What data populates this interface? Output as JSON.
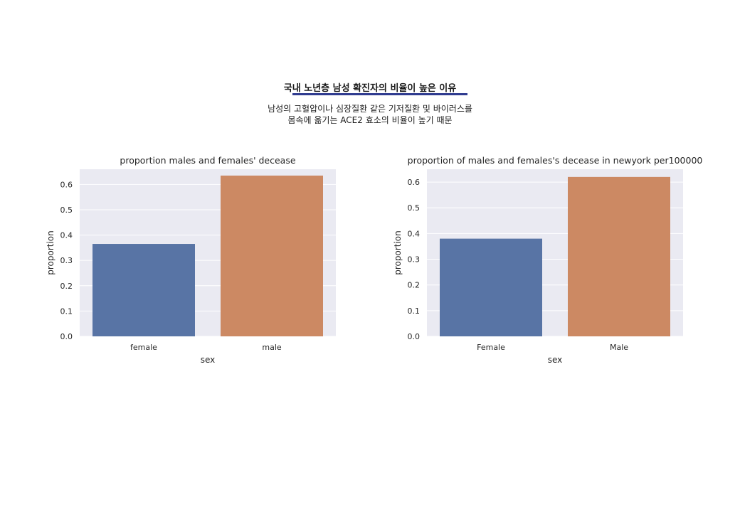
{
  "page": {
    "headline": "국내 노년층 남성 확진자의 비율이 높은 이유",
    "subtext_lines": [
      "남성의 고혈압이나 심장질환 같은 기저질환 및 바이러스를",
      "몸속에 옮기는 ACE2 효소의 비율이 높기 때문"
    ]
  },
  "colors": {
    "female": "#5874a5",
    "male": "#cc8963",
    "panel": "#eaeaf2",
    "rule": "#2f3b8f"
  },
  "chart_data": [
    {
      "type": "bar",
      "title": "proportion males and females' decease",
      "categories": [
        "female",
        "male"
      ],
      "values": [
        0.365,
        0.635
      ],
      "xlabel": "sex",
      "ylabel": "proportion",
      "ylim": [
        0,
        0.66
      ],
      "yticks": [
        "0.0",
        "0.1",
        "0.2",
        "0.3",
        "0.4",
        "0.5",
        "0.6"
      ],
      "grid": true
    },
    {
      "type": "bar",
      "title": "proportion of males and females's decease in newyork per100000",
      "categories": [
        "Female",
        "Male"
      ],
      "values": [
        0.38,
        0.62
      ],
      "xlabel": "sex",
      "ylabel": "proportion",
      "ylim": [
        0,
        0.65
      ],
      "yticks": [
        "0.0",
        "0.1",
        "0.2",
        "0.3",
        "0.4",
        "0.5",
        "0.6"
      ],
      "grid": true
    }
  ]
}
